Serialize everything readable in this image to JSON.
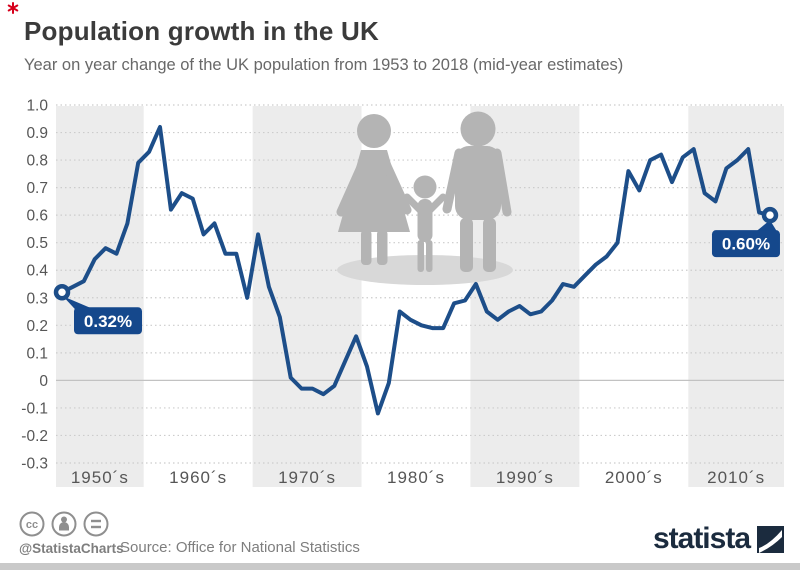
{
  "header": {
    "title": "Population growth in the UK",
    "subtitle": "Year on year change of the UK population from 1953 to 2018 (mid-year estimates)"
  },
  "chart_data": {
    "type": "line",
    "title": "Population growth in the UK",
    "series_name": "Year on year change of UK population (%)",
    "x": [
      1953,
      1954,
      1955,
      1956,
      1957,
      1958,
      1959,
      1960,
      1961,
      1962,
      1963,
      1964,
      1965,
      1966,
      1967,
      1968,
      1969,
      1970,
      1971,
      1972,
      1973,
      1974,
      1975,
      1976,
      1977,
      1978,
      1979,
      1980,
      1981,
      1982,
      1983,
      1984,
      1985,
      1986,
      1987,
      1988,
      1989,
      1990,
      1991,
      1992,
      1993,
      1994,
      1995,
      1996,
      1997,
      1998,
      1999,
      2000,
      2001,
      2002,
      2003,
      2004,
      2005,
      2006,
      2007,
      2008,
      2009,
      2010,
      2011,
      2012,
      2013,
      2014,
      2015,
      2016,
      2017,
      2018
    ],
    "values": [
      0.32,
      0.34,
      0.36,
      0.44,
      0.48,
      0.46,
      0.57,
      0.79,
      0.83,
      0.92,
      0.62,
      0.68,
      0.66,
      0.53,
      0.57,
      0.46,
      0.46,
      0.3,
      0.53,
      0.34,
      0.23,
      0.01,
      -0.03,
      -0.03,
      -0.05,
      -0.02,
      0.07,
      0.16,
      0.05,
      -0.12,
      -0.01,
      0.25,
      0.22,
      0.2,
      0.19,
      0.19,
      0.28,
      0.29,
      0.35,
      0.25,
      0.22,
      0.25,
      0.27,
      0.24,
      0.25,
      0.29,
      0.35,
      0.34,
      0.38,
      0.42,
      0.45,
      0.5,
      0.76,
      0.69,
      0.8,
      0.82,
      0.72,
      0.81,
      0.84,
      0.68,
      0.65,
      0.77,
      0.8,
      0.84,
      0.61,
      0.6
    ],
    "ylim": [
      -0.3,
      1.0
    ],
    "y_ticks": [
      {
        "v": 1.0,
        "label": "1.0"
      },
      {
        "v": 0.9,
        "label": "0.9"
      },
      {
        "v": 0.8,
        "label": "0.8"
      },
      {
        "v": 0.7,
        "label": "0.7"
      },
      {
        "v": 0.6,
        "label": "0.6"
      },
      {
        "v": 0.5,
        "label": "0.5"
      },
      {
        "v": 0.4,
        "label": "0.4"
      },
      {
        "v": 0.3,
        "label": "0.3"
      },
      {
        "v": 0.2,
        "label": "0.2"
      },
      {
        "v": 0.1,
        "label": "0.1"
      },
      {
        "v": 0.0,
        "label": "0"
      },
      {
        "v": -0.1,
        "label": "-0.1"
      },
      {
        "v": -0.2,
        "label": "-0.2"
      },
      {
        "v": -0.3,
        "label": "-0.3"
      }
    ],
    "decade_bands": [
      {
        "label": "1950´s",
        "shaded": true
      },
      {
        "label": "1960´s",
        "shaded": false
      },
      {
        "label": "1970´s",
        "shaded": true
      },
      {
        "label": "1980´s",
        "shaded": false
      },
      {
        "label": "1990´s",
        "shaded": true
      },
      {
        "label": "2000´s",
        "shaded": false
      },
      {
        "label": "2010´s",
        "shaded": true
      }
    ],
    "point_labels": [
      {
        "year": 1953,
        "label": "0.32%",
        "anchor": "start"
      },
      {
        "year": 2018,
        "label": "0.60%",
        "anchor": "end"
      }
    ],
    "grid": "horizontal dotted, zero line solid",
    "legend_position": "none",
    "colors": {
      "line": "#1d4e89",
      "chip": "#15488c",
      "band": "#ececec",
      "grid": "#cccccc",
      "zero_line": "#c2c2c2",
      "icon_gray": "#b4b4b4",
      "shadow_gray": "#d8d8d8"
    }
  },
  "footer": {
    "icon_names": [
      "creative-commons-icon",
      "attribution-person-icon",
      "equals-icon"
    ],
    "handle": "@StatistaCharts",
    "source": "Source: Office for National Statistics",
    "logo_text": "statista",
    "logo_color": "#1b2b3e",
    "accent_red": "#d6001c"
  }
}
